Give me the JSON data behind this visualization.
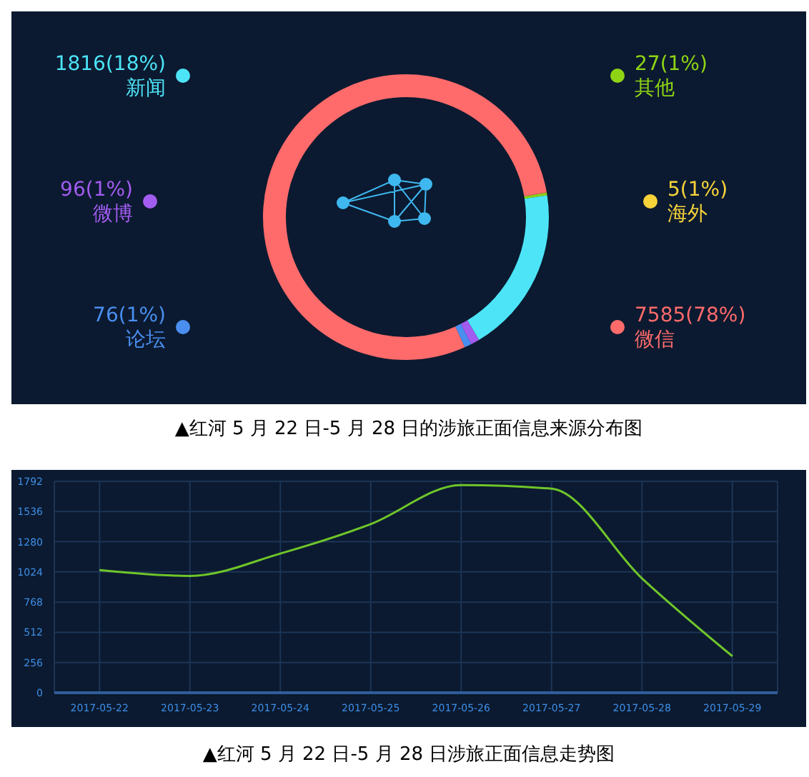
{
  "chart_data": [
    {
      "type": "donut",
      "title": "▲红河 5 月 22 日-5 月 28 日的涉旅正面信息来源分布图",
      "categories": [
        "海外",
        "其他",
        "新闻",
        "微博",
        "论坛",
        "微信"
      ],
      "values": [
        5,
        27,
        1816,
        96,
        76,
        7585
      ],
      "colors": [
        "#f7d33a",
        "#8fd414",
        "#4de4f7",
        "#a35cf0",
        "#4a8ff0",
        "#ff6b6b"
      ],
      "value_labels": [
        "5(1%)",
        "27(1%)",
        "1816(18%)",
        "96(1%)",
        "76(1%)",
        "7585(78%)"
      ],
      "legend": "left and right"
    },
    {
      "type": "line",
      "title": "▲红河 5 月 22 日-5 月 28 日涉旅正面信息走势图",
      "x": [
        "2017-05-22",
        "2017-05-23",
        "2017-05-24",
        "2017-05-25",
        "2017-05-26",
        "2017-05-27",
        "2017-05-28",
        "2017-05-29"
      ],
      "values": [
        1040,
        990,
        1180,
        1430,
        1760,
        1730,
        970,
        310
      ],
      "color": "#6fc52a",
      "xlim": [
        "2017-05-21T12:00",
        "2017-05-29T12:00"
      ],
      "xticks": [
        "2017-05-22",
        "2017-05-23",
        "2017-05-24",
        "2017-05-25",
        "2017-05-26",
        "2017-05-27",
        "2017-05-28",
        "2017-05-29"
      ],
      "ylim": [
        0,
        1792
      ],
      "yticks": [
        0,
        256,
        512,
        768,
        1024,
        1280,
        1536,
        1792
      ],
      "grid": true
    }
  ]
}
